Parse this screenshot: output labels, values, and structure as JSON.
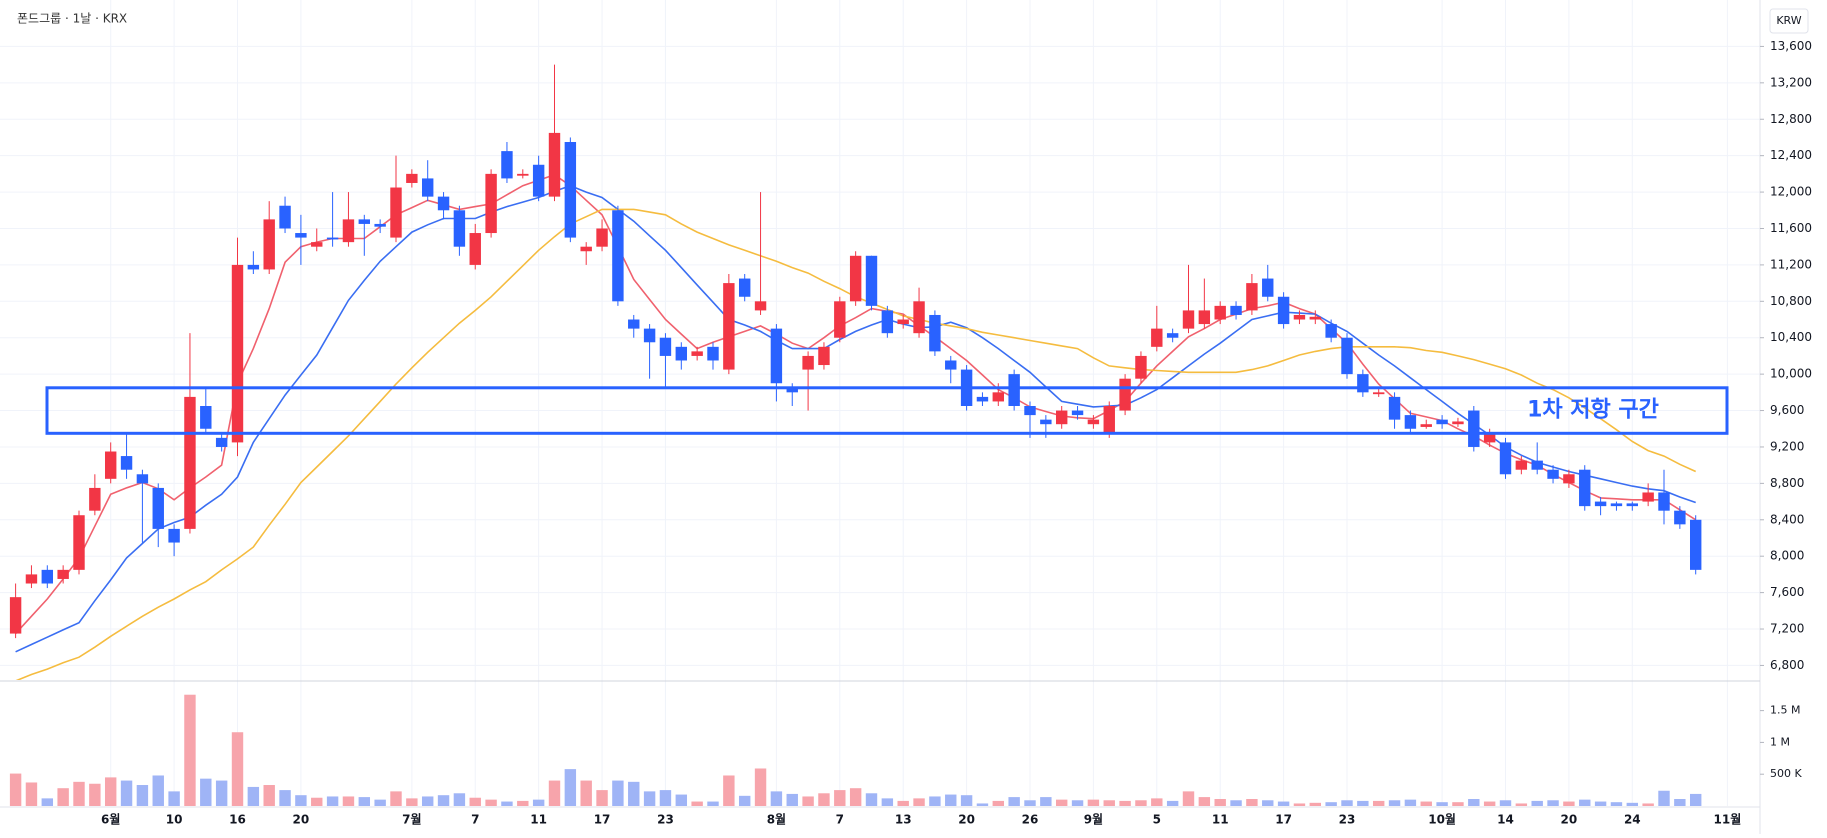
{
  "chart_data": {
    "type": "candlestick",
    "title": "폰드그룹 · 1날 · KRX",
    "currency": "KRW",
    "categories": [
      null,
      null,
      null,
      null,
      null,
      null,
      "6월",
      null,
      null,
      null,
      "10",
      null,
      null,
      null,
      "16",
      null,
      null,
      null,
      "20",
      null,
      null,
      null,
      null,
      null,
      null,
      "7월",
      null,
      null,
      null,
      "7",
      null,
      null,
      null,
      "11",
      null,
      null,
      null,
      "17",
      null,
      null,
      null,
      "23",
      null,
      null,
      null,
      null,
      null,
      null,
      "8월",
      null,
      null,
      null,
      "7",
      null,
      null,
      null,
      "13",
      null,
      null,
      null,
      "20",
      null,
      null,
      null,
      "26",
      null,
      null,
      null,
      "9월",
      null,
      null,
      null,
      "5",
      null,
      null,
      null,
      "11",
      null,
      null,
      null,
      "17",
      null,
      null,
      null,
      "23",
      null,
      null,
      null,
      null,
      null,
      "10월",
      null,
      null,
      null,
      "14",
      null,
      null,
      null,
      "20",
      null,
      null,
      null,
      "24",
      null,
      null,
      null,
      null,
      null,
      "11월"
    ],
    "open": [
      7150,
      7700,
      7850,
      7750,
      7850,
      8500,
      8850,
      9100,
      8900,
      8750,
      8300,
      8300,
      9650,
      9300,
      9250,
      11200,
      11150,
      11850,
      11550,
      11400,
      11500,
      11450,
      11700,
      11650,
      11500,
      12100,
      12150,
      11950,
      11800,
      11200,
      11550,
      12450,
      12180,
      12300,
      11950,
      12550,
      11350,
      11400,
      11800,
      10600,
      10500,
      10400,
      10300,
      10200,
      10300,
      10050,
      11050,
      10700,
      10500,
      9850,
      10050,
      10100,
      10400,
      10800,
      11300,
      10700,
      10550,
      10450,
      10650,
      10150,
      10050,
      9750,
      9700,
      10000,
      9650,
      9500,
      9450,
      9600,
      9450,
      9350,
      9600,
      9950,
      10300,
      10450,
      10500,
      10550,
      10600,
      10750,
      10700,
      11050,
      10850,
      10600,
      10600,
      10550,
      10400,
      10000,
      9780,
      9750,
      9550,
      9420,
      9500,
      9450,
      9600,
      9250,
      9250,
      8950,
      9050,
      8950,
      8800,
      8950,
      8600,
      8580,
      8580,
      8600,
      8700,
      8500,
      8400,
      null,
      null
    ],
    "high": [
      7700,
      7900,
      7900,
      7900,
      8500,
      8900,
      9250,
      9350,
      8950,
      8800,
      8350,
      10450,
      9850,
      9350,
      11500,
      11350,
      11900,
      11950,
      11750,
      11600,
      12000,
      12000,
      11750,
      11700,
      12400,
      12250,
      12350,
      12000,
      11850,
      11650,
      12250,
      12550,
      12250,
      12400,
      13400,
      12600,
      11450,
      11700,
      11850,
      10650,
      10550,
      10450,
      10350,
      10300,
      10350,
      11100,
      11100,
      12000,
      10550,
      9900,
      10250,
      10350,
      10850,
      11350,
      11300,
      10750,
      10650,
      10950,
      10700,
      10200,
      10100,
      9800,
      9900,
      10050,
      9700,
      9550,
      9650,
      9650,
      9550,
      9700,
      10000,
      10250,
      10750,
      10500,
      11200,
      11050,
      10800,
      10800,
      11100,
      11200,
      10900,
      10700,
      10700,
      10600,
      10450,
      10050,
      9850,
      9800,
      9600,
      9500,
      9550,
      9520,
      9650,
      9400,
      9300,
      9100,
      9250,
      9000,
      8950,
      9000,
      8650,
      8600,
      8600,
      8800,
      8950,
      8550,
      8450,
      null,
      null
    ],
    "low": [
      7100,
      7650,
      7650,
      7700,
      7800,
      8450,
      8800,
      8850,
      8150,
      8100,
      8000,
      8250,
      9350,
      9150,
      9100,
      11100,
      11100,
      11550,
      11200,
      11350,
      11400,
      11400,
      11300,
      11550,
      11450,
      12050,
      11900,
      11700,
      11300,
      11150,
      11500,
      12100,
      12150,
      11900,
      11900,
      11450,
      11200,
      11350,
      10750,
      10400,
      9950,
      9850,
      10050,
      10150,
      10050,
      10000,
      10800,
      10650,
      9700,
      9650,
      9600,
      10050,
      10350,
      10750,
      10700,
      10400,
      10500,
      10400,
      10200,
      9900,
      9600,
      9650,
      9650,
      9600,
      9300,
      9300,
      9400,
      9500,
      9400,
      9300,
      9550,
      9900,
      10250,
      10350,
      10450,
      10500,
      10550,
      10600,
      10650,
      10800,
      10500,
      10550,
      10550,
      10350,
      9950,
      9750,
      9750,
      9400,
      9350,
      9400,
      9400,
      9420,
      9150,
      9200,
      8850,
      8900,
      8900,
      8800,
      8750,
      8500,
      8450,
      8500,
      8500,
      8550,
      8350,
      8300,
      7800,
      null,
      null
    ],
    "close": [
      7550,
      7800,
      7700,
      7850,
      8450,
      8750,
      9150,
      8950,
      8800,
      8300,
      8150,
      9750,
      9400,
      9200,
      11200,
      11150,
      11700,
      11600,
      11500,
      11450,
      11480,
      11700,
      11650,
      11620,
      12050,
      12200,
      11950,
      11800,
      11400,
      11550,
      12200,
      12150,
      12200,
      11950,
      12650,
      11500,
      11400,
      11600,
      10800,
      10500,
      10350,
      10200,
      10150,
      10250,
      10150,
      11000,
      10850,
      10800,
      9900,
      9800,
      10200,
      10300,
      10800,
      11300,
      10750,
      10450,
      10600,
      10800,
      10250,
      10050,
      9650,
      9700,
      9800,
      9650,
      9550,
      9450,
      9600,
      9550,
      9500,
      9650,
      9950,
      10200,
      10500,
      10400,
      10700,
      10700,
      10750,
      10650,
      11000,
      10850,
      10550,
      10650,
      10630,
      10400,
      10000,
      9800,
      9800,
      9500,
      9400,
      9450,
      9450,
      9480,
      9200,
      9350,
      8900,
      9050,
      8950,
      8850,
      8900,
      8550,
      8550,
      8550,
      8550,
      8700,
      8500,
      8350,
      7850,
      null,
      null
    ],
    "up_color": "#f23645",
    "down_color": "#2962ff",
    "ylim": [
      6640,
      14110
    ],
    "yticks": [
      {
        "value": 6800,
        "label": "6,800"
      },
      {
        "value": 7200,
        "label": "7,200"
      },
      {
        "value": 7600,
        "label": "7,600"
      },
      {
        "value": 8000,
        "label": "8,000"
      },
      {
        "value": 8400,
        "label": "8,400"
      },
      {
        "value": 8800,
        "label": "8,800"
      },
      {
        "value": 9200,
        "label": "9,200"
      },
      {
        "value": 9600,
        "label": "9,600"
      },
      {
        "value": 10000,
        "label": "10,000"
      },
      {
        "value": 10400,
        "label": "10,400"
      },
      {
        "value": 10800,
        "label": "10,800"
      },
      {
        "value": 11200,
        "label": "11,200"
      },
      {
        "value": 11600,
        "label": "11,600"
      },
      {
        "value": 12000,
        "label": "12,000"
      },
      {
        "value": 12400,
        "label": "12,400"
      },
      {
        "value": 12800,
        "label": "12,800"
      },
      {
        "value": 13200,
        "label": "13,200"
      },
      {
        "value": 13600,
        "label": "13,600"
      }
    ],
    "grid": true,
    "moving_averages": [
      {
        "color": "#f0616e",
        "values": [
          7150,
          7340,
          7530,
          7750,
          7980,
          8330,
          8680,
          8750,
          8810,
          8740,
          8620,
          8750,
          8870,
          9000,
          9900,
          10280,
          10720,
          11230,
          11400,
          11450,
          11490,
          11490,
          11490,
          11620,
          11750,
          11830,
          11910,
          11860,
          11810,
          11840,
          11870,
          11970,
          12070,
          12130,
          12190,
          12070,
          11910,
          11750,
          11400,
          11040,
          10820,
          10600,
          10440,
          10280,
          10350,
          10410,
          10470,
          10530,
          10440,
          10340,
          10280,
          10400,
          10530,
          10620,
          10720,
          10690,
          10660,
          10530,
          10410,
          10280,
          10150,
          9990,
          9830,
          9740,
          9640,
          9590,
          9540,
          9520,
          9510,
          9600,
          9700,
          9900,
          10090,
          10250,
          10410,
          10500,
          10600,
          10660,
          10720,
          10750,
          10790,
          10720,
          10660,
          10500,
          10340,
          10110,
          9890,
          9730,
          9570,
          9530,
          9490,
          9400,
          9320,
          9220,
          9130,
          9060,
          9000,
          8900,
          8810,
          8720,
          8640,
          8630,
          8620,
          8620,
          8620,
          8510,
          8400,
          null,
          null
        ]
      },
      {
        "color": "#3a6ef2",
        "values": [
          6950,
          7030,
          7110,
          7190,
          7270,
          7510,
          7740,
          7980,
          8140,
          8300,
          8370,
          8430,
          8560,
          8680,
          8870,
          9250,
          9510,
          9770,
          9990,
          10210,
          10510,
          10810,
          11030,
          11240,
          11400,
          11560,
          11640,
          11710,
          11710,
          11710,
          11780,
          11840,
          11890,
          11940,
          12010,
          12070,
          12000,
          11940,
          11810,
          11680,
          11520,
          11360,
          11170,
          10980,
          10790,
          10600,
          10540,
          10470,
          10370,
          10280,
          10280,
          10280,
          10380,
          10470,
          10540,
          10600,
          10550,
          10510,
          10520,
          10570,
          10510,
          10400,
          10280,
          10150,
          10020,
          9860,
          9700,
          9670,
          9640,
          9650,
          9660,
          9740,
          9830,
          9960,
          10090,
          10220,
          10340,
          10470,
          10600,
          10640,
          10680,
          10670,
          10660,
          10560,
          10470,
          10340,
          10210,
          10090,
          9960,
          9830,
          9700,
          9570,
          9450,
          9330,
          9200,
          9110,
          9030,
          8980,
          8930,
          8890,
          8850,
          8810,
          8770,
          8740,
          8720,
          8650,
          8590,
          null,
          null
        ]
      },
      {
        "color": "#f5bc3f",
        "values": [
          6630,
          6700,
          6760,
          6830,
          6890,
          7000,
          7120,
          7230,
          7340,
          7440,
          7530,
          7630,
          7720,
          7850,
          7970,
          8100,
          8340,
          8570,
          8810,
          8980,
          9150,
          9320,
          9510,
          9700,
          9890,
          10070,
          10240,
          10400,
          10560,
          10700,
          10850,
          11020,
          11190,
          11360,
          11510,
          11650,
          11730,
          11810,
          11810,
          11810,
          11780,
          11750,
          11650,
          11560,
          11490,
          11420,
          11360,
          11300,
          11240,
          11170,
          11110,
          11020,
          10940,
          10850,
          10780,
          10710,
          10640,
          10600,
          10560,
          10530,
          10500,
          10460,
          10430,
          10400,
          10370,
          10340,
          10310,
          10280,
          10180,
          10090,
          10070,
          10050,
          10040,
          10030,
          10020,
          10020,
          10020,
          10020,
          10050,
          10090,
          10150,
          10210,
          10250,
          10280,
          10300,
          10300,
          10300,
          10300,
          10290,
          10260,
          10240,
          10200,
          10160,
          10110,
          10060,
          9990,
          9900,
          9830,
          9740,
          9630,
          9510,
          9390,
          9260,
          9160,
          9100,
          9010,
          8930,
          null,
          null
        ]
      }
    ],
    "volume": {
      "values": [
        510000,
        370000,
        120000,
        280000,
        380000,
        350000,
        450000,
        400000,
        330000,
        480000,
        230000,
        1750000,
        430000,
        400000,
        1160000,
        300000,
        330000,
        250000,
        170000,
        130000,
        150000,
        150000,
        140000,
        100000,
        230000,
        120000,
        150000,
        170000,
        200000,
        130000,
        100000,
        70000,
        80000,
        100000,
        400000,
        580000,
        400000,
        250000,
        400000,
        380000,
        230000,
        250000,
        180000,
        70000,
        70000,
        480000,
        160000,
        590000,
        230000,
        190000,
        150000,
        200000,
        250000,
        280000,
        200000,
        120000,
        80000,
        120000,
        150000,
        180000,
        170000,
        40000,
        80000,
        140000,
        90000,
        140000,
        100000,
        90000,
        100000,
        90000,
        80000,
        90000,
        120000,
        80000,
        230000,
        140000,
        110000,
        90000,
        110000,
        90000,
        70000,
        40000,
        50000,
        60000,
        90000,
        80000,
        80000,
        90000,
        100000,
        70000,
        60000,
        60000,
        110000,
        70000,
        90000,
        40000,
        80000,
        90000,
        70000,
        100000,
        70000,
        60000,
        50000,
        40000,
        240000,
        110000,
        190000,
        null,
        null
      ],
      "up_color": "#f7a4ab",
      "down_color": "#9fb4f6",
      "ylim": [
        0,
        1950000
      ],
      "yticks": [
        {
          "value": 500000,
          "label": "500 K"
        },
        {
          "value": 1000000,
          "label": "1 M"
        },
        {
          "value": 1500000,
          "label": "1.5 M"
        }
      ]
    },
    "annotation": {
      "text": "1차 저항 구간",
      "top": 9850,
      "bottom": 9350,
      "color": "#2962ff"
    }
  }
}
